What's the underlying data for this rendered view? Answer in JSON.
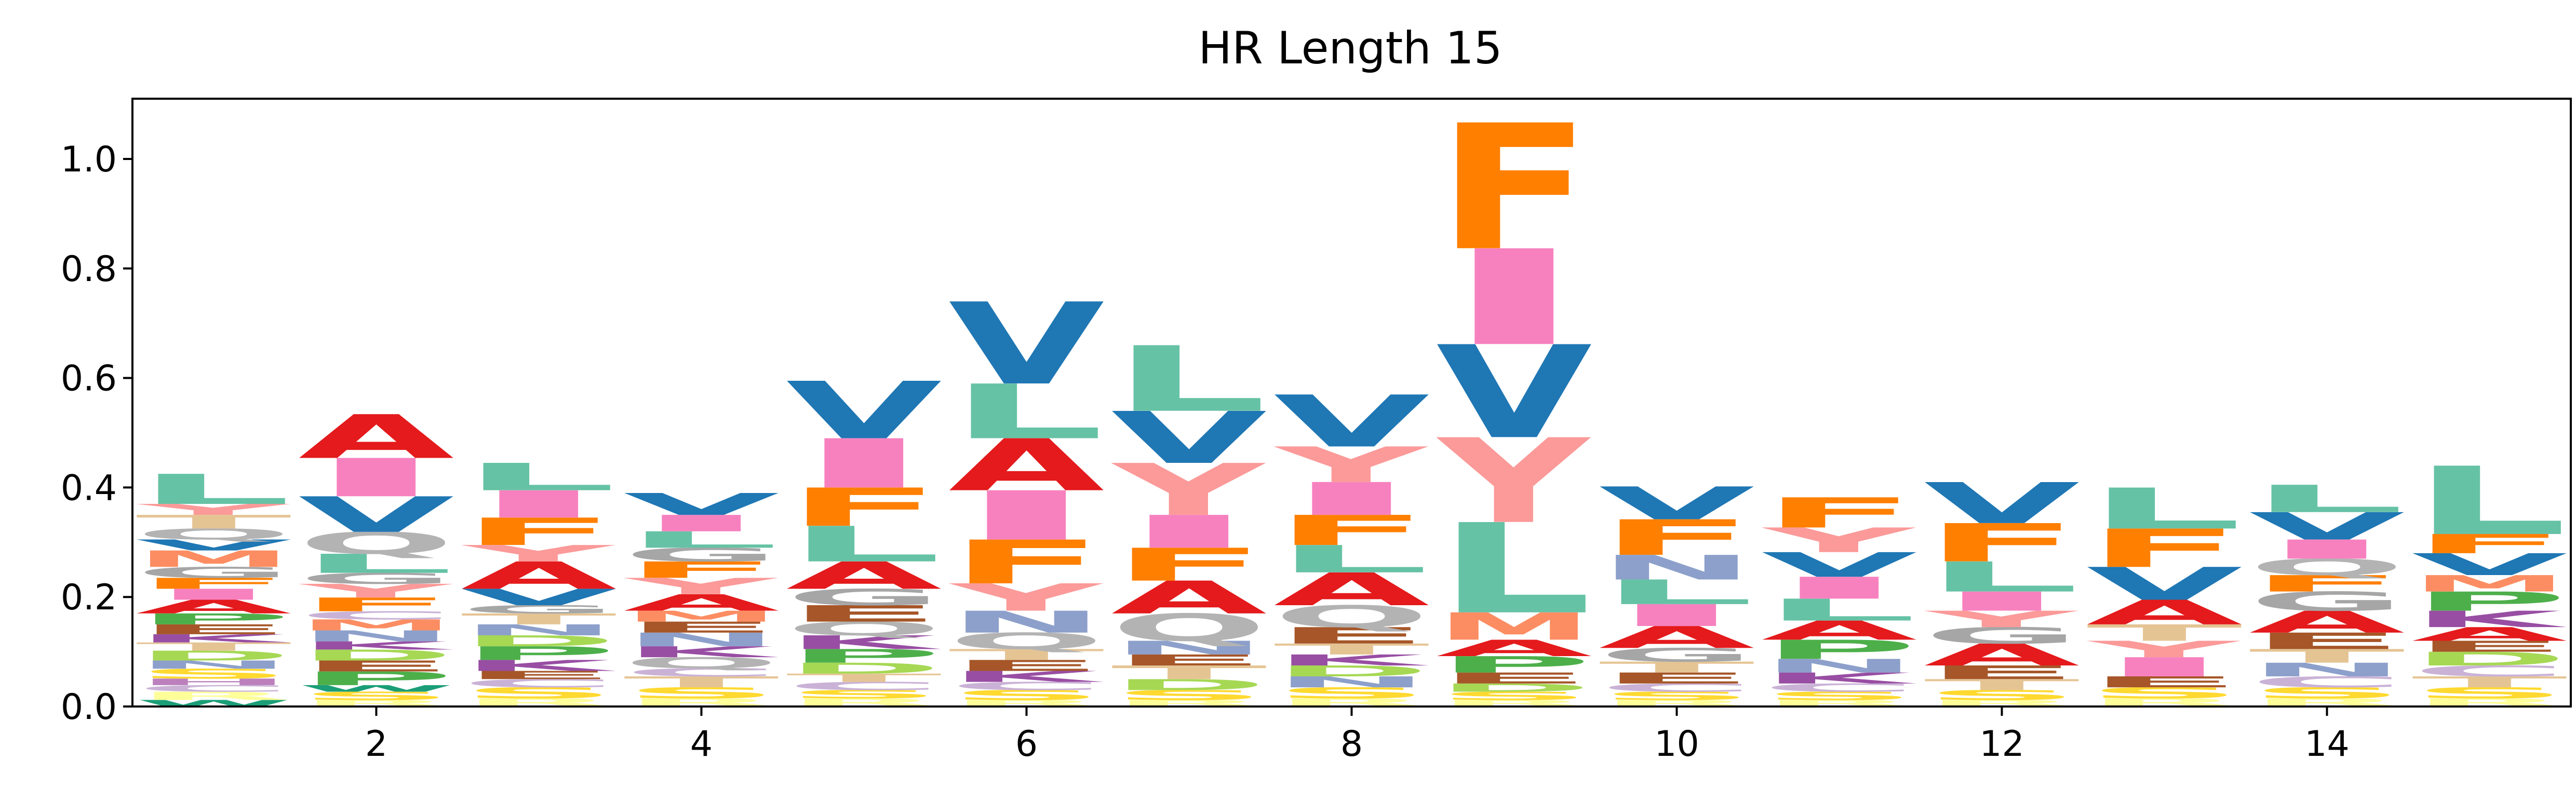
{
  "chart_data": {
    "type": "sequence-logo",
    "title": "HR Length 15",
    "xlabel": "",
    "ylabel": "",
    "xlim": [
      0.5,
      15.5
    ],
    "ylim": [
      0.0,
      1.11
    ],
    "xticks": [
      2,
      4,
      6,
      8,
      10,
      12,
      14
    ],
    "xtick_labels": [
      "2",
      "4",
      "6",
      "8",
      "10",
      "12",
      "14"
    ],
    "yticks": [
      0.0,
      0.2,
      0.4,
      0.6,
      0.8,
      1.0
    ],
    "ytick_labels": [
      "0.0",
      "0.2",
      "0.4",
      "0.6",
      "0.8",
      "1.0"
    ],
    "grid": false,
    "colors": {
      "A": "#e41a1c",
      "V": "#1f77b4",
      "L": "#66c2a5",
      "F": "#ff7f00",
      "Y": "#fb9a99",
      "I": "#f781bf",
      "P": "#4daf4a",
      "M": "#fc8d62",
      "G": "#a6a6a6",
      "N": "#8da0cb",
      "E": "#a65628",
      "K": "#984ea3",
      "D": "#a6d854",
      "S": "#ffd92f",
      "T": "#e5c494",
      "Q": "#b3b3b3",
      "R": "#ffff99",
      "C": "#cab2d6",
      "H": "#bc80bd",
      "W": "#1b9e77"
    },
    "positions": [
      {
        "pos": 1,
        "letters": [
          [
            "W",
            0.012
          ],
          [
            "R",
            0.015
          ],
          [
            "C",
            0.012
          ],
          [
            "H",
            0.012
          ],
          [
            "S",
            0.018
          ],
          [
            "N",
            0.015
          ],
          [
            "D",
            0.018
          ],
          [
            "T",
            0.015
          ],
          [
            "K",
            0.015
          ],
          [
            "E",
            0.018
          ],
          [
            "P",
            0.02
          ],
          [
            "A",
            0.025
          ],
          [
            "I",
            0.02
          ],
          [
            "F",
            0.02
          ],
          [
            "G",
            0.02
          ],
          [
            "M",
            0.03
          ],
          [
            "V",
            0.02
          ],
          [
            "Q",
            0.02
          ],
          [
            "T",
            0.025
          ],
          [
            "Y",
            0.02
          ],
          [
            "L",
            0.055
          ]
        ]
      },
      {
        "pos": 2,
        "letters": [
          [
            "R",
            0.012
          ],
          [
            "S",
            0.015
          ],
          [
            "W",
            0.012
          ],
          [
            "P",
            0.025
          ],
          [
            "E",
            0.02
          ],
          [
            "D",
            0.02
          ],
          [
            "K",
            0.015
          ],
          [
            "N",
            0.02
          ],
          [
            "M",
            0.02
          ],
          [
            "C",
            0.015
          ],
          [
            "F",
            0.025
          ],
          [
            "Y",
            0.025
          ],
          [
            "G",
            0.02
          ],
          [
            "L",
            0.035
          ],
          [
            "Q",
            0.04
          ],
          [
            "V",
            0.065
          ],
          [
            "I",
            0.07
          ],
          [
            "A",
            0.08
          ]
        ]
      },
      {
        "pos": 3,
        "letters": [
          [
            "R",
            0.015
          ],
          [
            "S",
            0.02
          ],
          [
            "C",
            0.015
          ],
          [
            "E",
            0.015
          ],
          [
            "K",
            0.02
          ],
          [
            "P",
            0.025
          ],
          [
            "D",
            0.02
          ],
          [
            "N",
            0.02
          ],
          [
            "T",
            0.02
          ],
          [
            "G",
            0.015
          ],
          [
            "V",
            0.03
          ],
          [
            "A",
            0.05
          ],
          [
            "Y",
            0.03
          ],
          [
            "F",
            0.05
          ],
          [
            "I",
            0.05
          ],
          [
            "L",
            0.05
          ]
        ]
      },
      {
        "pos": 4,
        "letters": [
          [
            "R",
            0.015
          ],
          [
            "S",
            0.02
          ],
          [
            "T",
            0.02
          ],
          [
            "C",
            0.015
          ],
          [
            "Q",
            0.02
          ],
          [
            "K",
            0.02
          ],
          [
            "N",
            0.025
          ],
          [
            "E",
            0.02
          ],
          [
            "M",
            0.02
          ],
          [
            "A",
            0.03
          ],
          [
            "Y",
            0.03
          ],
          [
            "F",
            0.03
          ],
          [
            "G",
            0.025
          ],
          [
            "L",
            0.03
          ],
          [
            "I",
            0.03
          ],
          [
            "V",
            0.04
          ]
        ]
      },
      {
        "pos": 5,
        "letters": [
          [
            "R",
            0.015
          ],
          [
            "S",
            0.015
          ],
          [
            "C",
            0.015
          ],
          [
            "T",
            0.015
          ],
          [
            "D",
            0.02
          ],
          [
            "P",
            0.025
          ],
          [
            "K",
            0.025
          ],
          [
            "Q",
            0.025
          ],
          [
            "E",
            0.03
          ],
          [
            "G",
            0.03
          ],
          [
            "A",
            0.05
          ],
          [
            "L",
            0.065
          ],
          [
            "F",
            0.07
          ],
          [
            "I",
            0.09
          ],
          [
            "V",
            0.105
          ]
        ]
      },
      {
        "pos": 6,
        "letters": [
          [
            "R",
            0.012
          ],
          [
            "S",
            0.018
          ],
          [
            "C",
            0.015
          ],
          [
            "K",
            0.02
          ],
          [
            "E",
            0.02
          ],
          [
            "T",
            0.02
          ],
          [
            "Q",
            0.03
          ],
          [
            "N",
            0.04
          ],
          [
            "Y",
            0.05
          ],
          [
            "F",
            0.08
          ],
          [
            "I",
            0.09
          ],
          [
            "A",
            0.095
          ],
          [
            "L",
            0.1
          ],
          [
            "V",
            0.15
          ]
        ]
      },
      {
        "pos": 7,
        "letters": [
          [
            "R",
            0.012
          ],
          [
            "S",
            0.018
          ],
          [
            "D",
            0.02
          ],
          [
            "T",
            0.025
          ],
          [
            "E",
            0.02
          ],
          [
            "N",
            0.025
          ],
          [
            "Q",
            0.05
          ],
          [
            "A",
            0.06
          ],
          [
            "F",
            0.06
          ],
          [
            "I",
            0.06
          ],
          [
            "Y",
            0.095
          ],
          [
            "V",
            0.095
          ],
          [
            "L",
            0.12
          ]
        ]
      },
      {
        "pos": 8,
        "letters": [
          [
            "R",
            0.015
          ],
          [
            "S",
            0.02
          ],
          [
            "N",
            0.02
          ],
          [
            "D",
            0.02
          ],
          [
            "K",
            0.02
          ],
          [
            "T",
            0.02
          ],
          [
            "E",
            0.03
          ],
          [
            "Q",
            0.04
          ],
          [
            "A",
            0.06
          ],
          [
            "L",
            0.05
          ],
          [
            "F",
            0.055
          ],
          [
            "I",
            0.06
          ],
          [
            "Y",
            0.065
          ],
          [
            "V",
            0.095
          ]
        ]
      },
      {
        "pos": 9,
        "letters": [
          [
            "R",
            0.012
          ],
          [
            "S",
            0.015
          ],
          [
            "D",
            0.015
          ],
          [
            "E",
            0.02
          ],
          [
            "P",
            0.03
          ],
          [
            "A",
            0.03
          ],
          [
            "M",
            0.05
          ],
          [
            "L",
            0.165
          ],
          [
            "Y",
            0.155
          ],
          [
            "V",
            0.17
          ],
          [
            "I",
            0.175
          ],
          [
            "F",
            0.23
          ]
        ]
      },
      {
        "pos": 10,
        "letters": [
          [
            "R",
            0.012
          ],
          [
            "S",
            0.015
          ],
          [
            "C",
            0.015
          ],
          [
            "E",
            0.02
          ],
          [
            "T",
            0.02
          ],
          [
            "G",
            0.025
          ],
          [
            "A",
            0.04
          ],
          [
            "I",
            0.04
          ],
          [
            "L",
            0.045
          ],
          [
            "N",
            0.045
          ],
          [
            "F",
            0.065
          ],
          [
            "V",
            0.06
          ]
        ]
      },
      {
        "pos": 11,
        "letters": [
          [
            "R",
            0.012
          ],
          [
            "S",
            0.015
          ],
          [
            "C",
            0.015
          ],
          [
            "K",
            0.02
          ],
          [
            "N",
            0.025
          ],
          [
            "P",
            0.035
          ],
          [
            "A",
            0.035
          ],
          [
            "L",
            0.04
          ],
          [
            "I",
            0.04
          ],
          [
            "V",
            0.045
          ],
          [
            "Y",
            0.045
          ],
          [
            "F",
            0.055
          ]
        ]
      },
      {
        "pos": 12,
        "letters": [
          [
            "R",
            0.012
          ],
          [
            "S",
            0.018
          ],
          [
            "T",
            0.02
          ],
          [
            "E",
            0.025
          ],
          [
            "A",
            0.04
          ],
          [
            "G",
            0.03
          ],
          [
            "Y",
            0.03
          ],
          [
            "I",
            0.035
          ],
          [
            "L",
            0.055
          ],
          [
            "F",
            0.07
          ],
          [
            "V",
            0.075
          ]
        ]
      },
      {
        "pos": 13,
        "letters": [
          [
            "R",
            0.015
          ],
          [
            "S",
            0.02
          ],
          [
            "E",
            0.02
          ],
          [
            "I",
            0.035
          ],
          [
            "Y",
            0.03
          ],
          [
            "T",
            0.03
          ],
          [
            "A",
            0.045
          ],
          [
            "V",
            0.06
          ],
          [
            "F",
            0.07
          ],
          [
            "L",
            0.075
          ]
        ]
      },
      {
        "pos": 14,
        "letters": [
          [
            "R",
            0.015
          ],
          [
            "S",
            0.02
          ],
          [
            "C",
            0.02
          ],
          [
            "N",
            0.025
          ],
          [
            "T",
            0.025
          ],
          [
            "E",
            0.03
          ],
          [
            "A",
            0.04
          ],
          [
            "G",
            0.035
          ],
          [
            "F",
            0.03
          ],
          [
            "Q",
            0.03
          ],
          [
            "I",
            0.035
          ],
          [
            "V",
            0.05
          ],
          [
            "L",
            0.05
          ]
        ]
      },
      {
        "pos": 15,
        "letters": [
          [
            "R",
            0.015
          ],
          [
            "S",
            0.02
          ],
          [
            "T",
            0.02
          ],
          [
            "C",
            0.02
          ],
          [
            "D",
            0.025
          ],
          [
            "E",
            0.02
          ],
          [
            "A",
            0.025
          ],
          [
            "K",
            0.03
          ],
          [
            "P",
            0.035
          ],
          [
            "M",
            0.03
          ],
          [
            "V",
            0.04
          ],
          [
            "F",
            0.035
          ],
          [
            "L",
            0.125
          ]
        ]
      }
    ]
  }
}
